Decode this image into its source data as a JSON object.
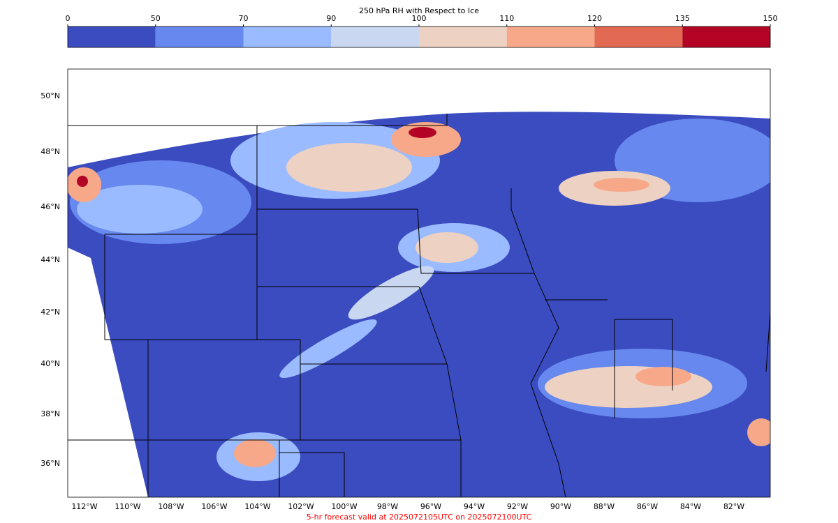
{
  "colorbar": {
    "title": "250 hPa RH with Respect to Ice",
    "ticks": [
      0,
      50,
      70,
      90,
      100,
      110,
      120,
      135,
      150
    ],
    "colors": [
      "#3b4cc0",
      "#6788ee",
      "#9abbff",
      "#c9d7f0",
      "#edd1c2",
      "#f7a889",
      "#e26952",
      "#b40426"
    ]
  },
  "map": {
    "lat_labels": [
      "50°N",
      "48°N",
      "46°N",
      "44°N",
      "42°N",
      "40°N",
      "38°N",
      "36°N"
    ],
    "lon_labels": [
      "112°W",
      "110°W",
      "108°W",
      "106°W",
      "104°W",
      "102°W",
      "100°W",
      "98°W",
      "96°W",
      "94°W",
      "92°W",
      "90°W",
      "88°W",
      "86°W",
      "84°W",
      "82°W"
    ]
  },
  "footer": "5-hr forecast valid at 2025072105UTC on 2025072100UTC"
}
